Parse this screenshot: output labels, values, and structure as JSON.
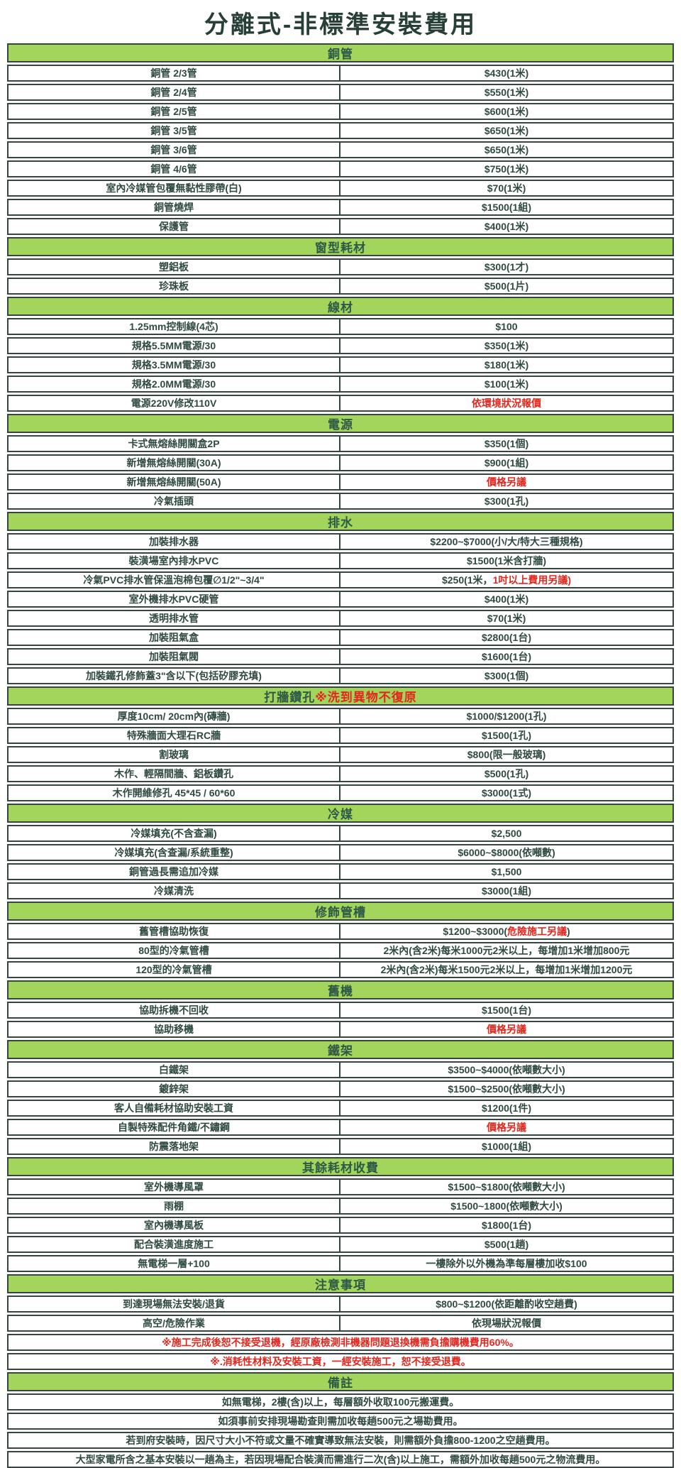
{
  "title": "分離式-非標準安裝費用",
  "colors": {
    "header_green": "#a3d45c",
    "alert_red": "#e2261d",
    "text_dark": "#2f4a42"
  },
  "sections": [
    {
      "header": [
        {
          "text": "銅管"
        }
      ],
      "rows": [
        {
          "label": "銅管 2/3管",
          "value": [
            {
              "text": "$430(1米)"
            }
          ]
        },
        {
          "label": "銅管 2/4管",
          "value": [
            {
              "text": "$550(1米)"
            }
          ]
        },
        {
          "label": "銅管 2/5管",
          "value": [
            {
              "text": "$600(1米)"
            }
          ]
        },
        {
          "label": "銅管 3/5管",
          "value": [
            {
              "text": "$650(1米)"
            }
          ]
        },
        {
          "label": "銅管 3/6管",
          "value": [
            {
              "text": "$650(1米)"
            }
          ]
        },
        {
          "label": "銅管 4/6管",
          "value": [
            {
              "text": "$750(1米)"
            }
          ]
        },
        {
          "label": "室內冷媒管包覆無黏性膠帶(白)",
          "value": [
            {
              "text": "$70(1米)"
            }
          ]
        },
        {
          "label": "銅管燒焊",
          "value": [
            {
              "text": "$1500(1組)"
            }
          ]
        },
        {
          "label": "保護管",
          "value": [
            {
              "text": "$400(1米)"
            }
          ]
        }
      ]
    },
    {
      "header": [
        {
          "text": "窗型耗材"
        }
      ],
      "rows": [
        {
          "label": "塑鋁板",
          "value": [
            {
              "text": "$300(1才)"
            }
          ]
        },
        {
          "label": "珍珠板",
          "value": [
            {
              "text": "$500(1片)"
            }
          ]
        }
      ]
    },
    {
      "header": [
        {
          "text": "線材"
        }
      ],
      "rows": [
        {
          "label": "1.25mm控制線(4芯)",
          "value": [
            {
              "text": "$100"
            }
          ]
        },
        {
          "label": "規格5.5MM電源/30",
          "value": [
            {
              "text": "$350(1米)"
            }
          ]
        },
        {
          "label": "規格3.5MM電源/30",
          "value": [
            {
              "text": "$180(1米)"
            }
          ]
        },
        {
          "label": "規格2.0MM電源/30",
          "value": [
            {
              "text": "$100(1米)"
            }
          ]
        },
        {
          "label": "電源220V修改110V",
          "value": [
            {
              "text": "依環境狀況報價",
              "red": true
            }
          ]
        }
      ]
    },
    {
      "header": [
        {
          "text": "電源"
        }
      ],
      "rows": [
        {
          "label": "卡式無熔絲開關盒2P",
          "value": [
            {
              "text": "$350(1個)"
            }
          ]
        },
        {
          "label": "新增無熔絲開關(30A)",
          "value": [
            {
              "text": "$900(1組)"
            }
          ]
        },
        {
          "label": "新增無熔絲開關(50A)",
          "value": [
            {
              "text": "價格另議",
              "red": true
            }
          ]
        },
        {
          "label": "冷氣插頭",
          "value": [
            {
              "text": "$300(1孔)"
            }
          ]
        }
      ]
    },
    {
      "header": [
        {
          "text": "排水"
        }
      ],
      "rows": [
        {
          "label": "加裝排水器",
          "value": [
            {
              "text": "$2200~$7000(小/大/特大三種規格)"
            }
          ]
        },
        {
          "label": "裝潢場室內排水PVC",
          "value": [
            {
              "text": "$1500(1米含打牆)"
            }
          ]
        },
        {
          "label": "冷氣PVC排水管保溫泡棉包覆∅1/2\"~3/4\"",
          "value": [
            {
              "text": "$250(1米，"
            },
            {
              "text": "1吋以上費用另議)",
              "red": true
            }
          ]
        },
        {
          "label": "室外機排水PVC硬管",
          "value": [
            {
              "text": "$400(1米)"
            }
          ]
        },
        {
          "label": "透明排水管",
          "value": [
            {
              "text": "$70(1米)"
            }
          ]
        },
        {
          "label": "加裝阻氣盒",
          "value": [
            {
              "text": "$2800(1台)"
            }
          ]
        },
        {
          "label": "加裝阻氣閥",
          "value": [
            {
              "text": "$1600(1台)"
            }
          ]
        },
        {
          "label": "加裝鐵孔修飾蓋3\"含以下(包括矽膠充填)",
          "value": [
            {
              "text": "$300(1個)"
            }
          ]
        }
      ]
    },
    {
      "header": [
        {
          "text": "打牆鑽孔 "
        },
        {
          "text": "※洗到異物不復原",
          "red": true
        }
      ],
      "rows": [
        {
          "label": "厚度10cm/ 20cm內(磚牆)",
          "value": [
            {
              "text": "$1000/$1200(1孔)"
            }
          ]
        },
        {
          "label": "特殊牆面大理石RC牆",
          "value": [
            {
              "text": "$1500(1孔)"
            }
          ]
        },
        {
          "label": "割玻璃",
          "value": [
            {
              "text": "$800(限一般玻璃)"
            }
          ]
        },
        {
          "label": "木作、輕隔間牆、鋁板鑽孔",
          "value": [
            {
              "text": "$500(1孔)"
            }
          ]
        },
        {
          "label": "木作開維修孔 45*45 / 60*60",
          "value": [
            {
              "text": "$3000(1式)"
            }
          ]
        }
      ]
    },
    {
      "header": [
        {
          "text": "冷媒"
        }
      ],
      "rows": [
        {
          "label": "冷媒填充(不含查漏)",
          "value": [
            {
              "text": "$2,500"
            }
          ]
        },
        {
          "label": "冷媒填充(含查漏/系統重整)",
          "value": [
            {
              "text": "$6000~$8000(依噸數)"
            }
          ]
        },
        {
          "label": "銅管過長需追加冷媒",
          "value": [
            {
              "text": "$1,500"
            }
          ]
        },
        {
          "label": "冷媒清洗",
          "value": [
            {
              "text": "$3000(1組)"
            }
          ]
        }
      ]
    },
    {
      "header": [
        {
          "text": "修飾管槽"
        }
      ],
      "rows": [
        {
          "label": "舊管槽協助恢復",
          "value": [
            {
              "text": "$1200~$3000("
            },
            {
              "text": "危險施工另議",
              "red": true
            },
            {
              "text": ")"
            }
          ]
        },
        {
          "label": "80型的冷氣管槽",
          "value": [
            {
              "text": "2米內(含2米)每米1000元2米以上，每增加1米增加800元"
            }
          ]
        },
        {
          "label": "120型的冷氣管槽",
          "value": [
            {
              "text": "2米內(含2米)每米1500元2米以上，每增加1米增加1200元"
            }
          ]
        }
      ]
    },
    {
      "header": [
        {
          "text": "舊機"
        }
      ],
      "rows": [
        {
          "label": "協助拆機不回收",
          "value": [
            {
              "text": "$1500(1台)"
            }
          ]
        },
        {
          "label": "協助移機",
          "value": [
            {
              "text": "價格另議",
              "red": true
            }
          ]
        }
      ]
    },
    {
      "header": [
        {
          "text": "鐵架"
        }
      ],
      "rows": [
        {
          "label": "白鐵架",
          "value": [
            {
              "text": "$3500~$4000(依噸數大小)"
            }
          ]
        },
        {
          "label": "鍍鋅架",
          "value": [
            {
              "text": "$1500~$2500(依噸數大小)"
            }
          ]
        },
        {
          "label": "客人自備耗材協助安裝工資",
          "value": [
            {
              "text": "$1200(1件)"
            }
          ]
        },
        {
          "label": "自製特殊配件角鐵/不鏽鋼",
          "value": [
            {
              "text": "價格另議",
              "red": true
            }
          ]
        },
        {
          "label": "防震落地架",
          "value": [
            {
              "text": "$1000(1組)"
            }
          ]
        }
      ]
    },
    {
      "header": [
        {
          "text": "其餘耗材收費"
        }
      ],
      "rows": [
        {
          "label": "室外機導風罩",
          "value": [
            {
              "text": "$1500~$1800(依噸數大小)"
            }
          ]
        },
        {
          "label": "雨棚",
          "value": [
            {
              "text": "$1500~1800(依噸數大小)"
            }
          ]
        },
        {
          "label": "室內機導風板",
          "value": [
            {
              "text": "$1800(1台)"
            }
          ]
        },
        {
          "label": "配合裝潢進度施工",
          "value": [
            {
              "text": "$500(1趟)"
            }
          ]
        },
        {
          "label": "無電梯一層+100",
          "value": [
            {
              "text": "一樓除外以外機為準每層樓加收$100"
            }
          ]
        }
      ]
    },
    {
      "header": [
        {
          "text": "注意事項"
        }
      ],
      "rows": [
        {
          "label": "到達現場無法安裝/退貨",
          "value": [
            {
              "text": "$800~$1200(依距離酌收空趟費)"
            }
          ]
        },
        {
          "label": "高空/危險作業",
          "value": [
            {
              "text": "依現場狀況報價"
            }
          ]
        },
        {
          "note": [
            {
              "text": "※施工完成後恕不接受退機，經原廠檢測非機器問題退換機需負擔購機費用60%。",
              "red": true
            }
          ]
        },
        {
          "note": [
            {
              "text": "※.消耗性材料及安裝工資，一經安裝施工，恕不接受退費。",
              "red": true
            }
          ]
        }
      ]
    },
    {
      "header": [
        {
          "text": "備註"
        }
      ],
      "rows": [
        {
          "note": [
            {
              "text": "如無電梯，2樓(含)以上，每層額外收取100元搬運費。"
            }
          ]
        },
        {
          "note": [
            {
              "text": "如須事前安排現場勘查則需加收每趟500元之場勘費用。"
            }
          ]
        },
        {
          "note": [
            {
              "text": "若到府安裝時，因尺寸大小不符或文量不確實導致無法安裝，則需額外負擔800-1200之空趟費用。"
            }
          ]
        },
        {
          "note": [
            {
              "text": "大型家電所含之基本安裝以一趟為主，若因現場配合裝潢而需進行二次(含)以上施工，需額外加收每趟500元之物流費用。"
            }
          ]
        }
      ]
    }
  ]
}
